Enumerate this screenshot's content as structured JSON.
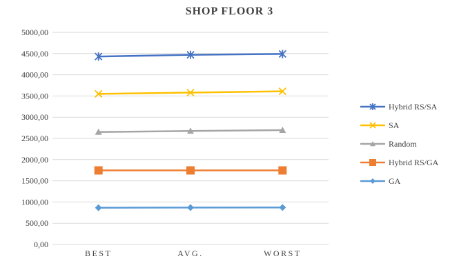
{
  "chart_data": {
    "type": "line",
    "title": "SHOP FLOOR 3",
    "categories": [
      "BEST",
      "AVG.",
      "WORST"
    ],
    "ylim": [
      0,
      5000
    ],
    "yticks": [
      "0,00",
      "500,00",
      "1000,00",
      "1500,00",
      "2000,00",
      "2500,00",
      "3000,00",
      "3500,00",
      "4000,00",
      "4500,00",
      "5000,00"
    ],
    "ytick_values": [
      0,
      500,
      1000,
      1500,
      2000,
      2500,
      3000,
      3500,
      4000,
      4500,
      5000
    ],
    "grid": true,
    "legend_position": "right",
    "series": [
      {
        "name": "Hybrid RS/SA",
        "values": [
          4430,
          4470,
          4490
        ],
        "color": "#4472C4",
        "marker": "star"
      },
      {
        "name": "SA",
        "values": [
          3550,
          3580,
          3610
        ],
        "color": "#FFC000",
        "marker": "x"
      },
      {
        "name": "Random",
        "values": [
          2650,
          2675,
          2695
        ],
        "color": "#A5A5A5",
        "marker": "triangle"
      },
      {
        "name": "Hybrid RS/GA",
        "values": [
          1745,
          1745,
          1745
        ],
        "color": "#ED7D31",
        "marker": "square"
      },
      {
        "name": "GA",
        "values": [
          865,
          868,
          870
        ],
        "color": "#5B9BD5",
        "marker": "diamond"
      }
    ]
  }
}
